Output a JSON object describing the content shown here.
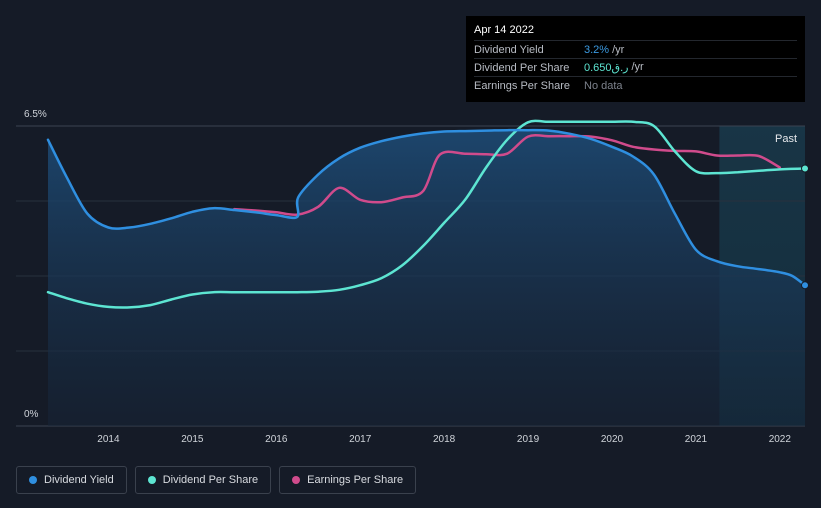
{
  "tooltip": {
    "date": "Apr 14 2022",
    "rows": [
      {
        "label": "Dividend Yield",
        "value": "3.2%",
        "unit": "/yr",
        "color": "#3b9ae1"
      },
      {
        "label": "Dividend Per Share",
        "value": "0.650ر.ق",
        "unit": "/yr",
        "color": "#5de5d2"
      },
      {
        "label": "Earnings Per Share",
        "value": "No data",
        "unit": "",
        "color": "#7d828c"
      }
    ]
  },
  "legend": [
    {
      "label": "Dividend Yield",
      "color": "#2f8fe0"
    },
    {
      "label": "Dividend Per Share",
      "color": "#5de5d2"
    },
    {
      "label": "Earnings Per Share",
      "color": "#d04b8c"
    }
  ],
  "chart_data": {
    "type": "line",
    "past_label": "Past",
    "y_tick_labels": [
      "6.5%",
      "0%"
    ],
    "x_ticks": [
      "2014",
      "2015",
      "2016",
      "2017",
      "2018",
      "2019",
      "2020",
      "2021",
      "2022"
    ],
    "xlim": [
      2013.28,
      2022.3
    ],
    "ylim": [
      0,
      6.5
    ],
    "past_region_start": 2021.28,
    "colors": {
      "yield": "#2f8fe0",
      "dps": "#5de5d2",
      "eps": "#d04b8c"
    },
    "series": [
      {
        "name": "Dividend Yield",
        "key": "yield",
        "values": [
          [
            2013.28,
            6.2
          ],
          [
            2013.5,
            5.4
          ],
          [
            2013.75,
            4.6
          ],
          [
            2014.0,
            4.3
          ],
          [
            2014.25,
            4.3
          ],
          [
            2014.5,
            4.38
          ],
          [
            2014.75,
            4.5
          ],
          [
            2015.0,
            4.64
          ],
          [
            2015.25,
            4.72
          ],
          [
            2015.5,
            4.68
          ],
          [
            2015.75,
            4.63
          ],
          [
            2016.0,
            4.57
          ],
          [
            2016.25,
            4.53
          ],
          [
            2016.26,
            4.95
          ],
          [
            2016.5,
            5.45
          ],
          [
            2016.75,
            5.8
          ],
          [
            2017.0,
            6.03
          ],
          [
            2017.25,
            6.17
          ],
          [
            2017.5,
            6.27
          ],
          [
            2017.75,
            6.34
          ],
          [
            2018.0,
            6.38
          ],
          [
            2018.25,
            6.39
          ],
          [
            2018.5,
            6.4
          ],
          [
            2018.75,
            6.41
          ],
          [
            2019.0,
            6.41
          ],
          [
            2019.25,
            6.4
          ],
          [
            2019.5,
            6.33
          ],
          [
            2019.75,
            6.22
          ],
          [
            2020.0,
            6.05
          ],
          [
            2020.25,
            5.84
          ],
          [
            2020.5,
            5.45
          ],
          [
            2020.75,
            4.6
          ],
          [
            2021.0,
            3.82
          ],
          [
            2021.25,
            3.57
          ],
          [
            2021.5,
            3.46
          ],
          [
            2021.75,
            3.4
          ],
          [
            2022.0,
            3.33
          ],
          [
            2022.15,
            3.25
          ],
          [
            2022.3,
            3.05
          ]
        ]
      },
      {
        "name": "Dividend Per Share",
        "key": "dps",
        "values": [
          [
            2013.28,
            2.9
          ],
          [
            2013.5,
            2.77
          ],
          [
            2013.75,
            2.65
          ],
          [
            2014.0,
            2.58
          ],
          [
            2014.25,
            2.57
          ],
          [
            2014.5,
            2.62
          ],
          [
            2014.75,
            2.74
          ],
          [
            2015.0,
            2.85
          ],
          [
            2015.25,
            2.9
          ],
          [
            2015.5,
            2.9
          ],
          [
            2015.75,
            2.9
          ],
          [
            2016.0,
            2.9
          ],
          [
            2016.25,
            2.9
          ],
          [
            2016.5,
            2.91
          ],
          [
            2016.75,
            2.95
          ],
          [
            2017.0,
            3.05
          ],
          [
            2017.25,
            3.2
          ],
          [
            2017.5,
            3.48
          ],
          [
            2017.75,
            3.9
          ],
          [
            2018.0,
            4.4
          ],
          [
            2018.25,
            4.9
          ],
          [
            2018.5,
            5.6
          ],
          [
            2018.75,
            6.2
          ],
          [
            2019.0,
            6.58
          ],
          [
            2019.25,
            6.59
          ],
          [
            2019.5,
            6.59
          ],
          [
            2019.75,
            6.59
          ],
          [
            2020.0,
            6.59
          ],
          [
            2020.25,
            6.59
          ],
          [
            2020.5,
            6.5
          ],
          [
            2020.75,
            5.95
          ],
          [
            2021.0,
            5.52
          ],
          [
            2021.25,
            5.48
          ],
          [
            2021.5,
            5.5
          ],
          [
            2021.75,
            5.53
          ],
          [
            2022.0,
            5.56
          ],
          [
            2022.3,
            5.58
          ]
        ]
      },
      {
        "name": "Earnings Per Share",
        "key": "eps",
        "values": [
          [
            2015.5,
            4.7
          ],
          [
            2015.75,
            4.67
          ],
          [
            2016.0,
            4.63
          ],
          [
            2016.25,
            4.58
          ],
          [
            2016.5,
            4.75
          ],
          [
            2016.75,
            5.16
          ],
          [
            2017.0,
            4.9
          ],
          [
            2017.25,
            4.85
          ],
          [
            2017.5,
            4.95
          ],
          [
            2017.75,
            5.09
          ],
          [
            2017.95,
            5.88
          ],
          [
            2018.25,
            5.9
          ],
          [
            2018.5,
            5.89
          ],
          [
            2018.75,
            5.9
          ],
          [
            2019.0,
            6.27
          ],
          [
            2019.25,
            6.28
          ],
          [
            2019.5,
            6.28
          ],
          [
            2019.75,
            6.27
          ],
          [
            2020.0,
            6.19
          ],
          [
            2020.25,
            6.05
          ],
          [
            2020.5,
            5.99
          ],
          [
            2020.75,
            5.96
          ],
          [
            2021.0,
            5.95
          ],
          [
            2021.25,
            5.86
          ],
          [
            2021.5,
            5.86
          ],
          [
            2021.75,
            5.85
          ],
          [
            2022.0,
            5.6
          ]
        ]
      }
    ]
  }
}
